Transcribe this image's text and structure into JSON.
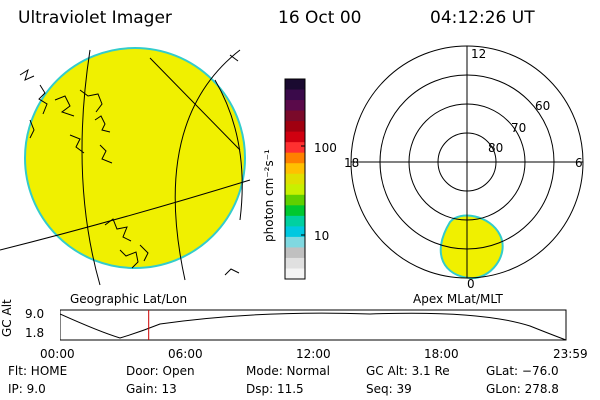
{
  "header": {
    "title": "Ultraviolet Imager",
    "date": "16 Oct 00",
    "time": "04:12:26 UT"
  },
  "colorbar": {
    "unit_label": "photon cm⁻²s⁻¹",
    "tick_100": "100",
    "tick_10": "10",
    "colors_top_to_bottom": [
      "#1a0a30",
      "#3a0a4a",
      "#5a0a4a",
      "#7a0a2a",
      "#a00010",
      "#d00010",
      "#ff3030",
      "#ff8000",
      "#ffc000",
      "#e0e000",
      "#c8f000",
      "#60d000",
      "#00c830",
      "#00d0a0",
      "#00c8e0",
      "#80d8e0",
      "#c0c0c0",
      "#e0e0e0",
      "#f4f4f4"
    ]
  },
  "left_map": {
    "label": "Geographic Lat/Lon",
    "fill_color": "#f0f000",
    "rim_color": "#33cccc"
  },
  "right_map": {
    "label": "Apex MLat/MLT",
    "lat_labels": [
      "60",
      "70",
      "80"
    ],
    "mlt_labels": {
      "top": "12",
      "left": "18",
      "right": "6",
      "bottom": "0"
    }
  },
  "timeline": {
    "ylabel": "GC Alt",
    "ymax": "9.0",
    "ymin": "1.8",
    "ticks": [
      "00:00",
      "06:00",
      "12:00",
      "18:00",
      "23:59"
    ],
    "current_hour": 4.207,
    "marker_color": "#cc0000"
  },
  "status": {
    "flt": "Flt: HOME",
    "ip": "IP:  9.0",
    "door": "Door: Open",
    "gain": "Gain: 13",
    "mode": "Mode: Normal",
    "dsp": "Dsp:    11.5",
    "gc_alt": "GC Alt: 3.1 Re",
    "seq": "Seq: 39",
    "glat": "GLat: −76.0",
    "glon": "GLon: 278.8"
  }
}
